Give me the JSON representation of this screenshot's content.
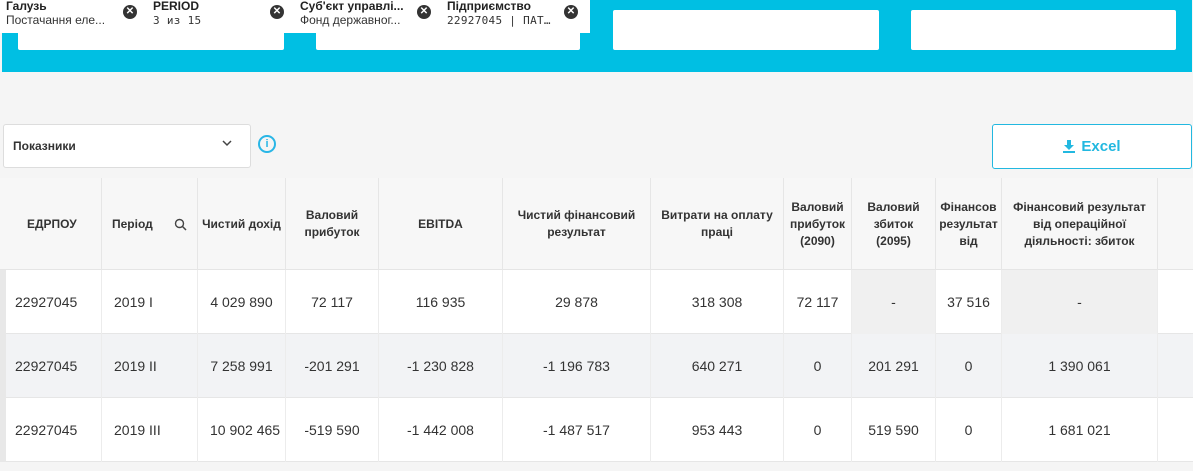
{
  "filters": [
    {
      "title": "Галузь",
      "value": "Постачання еле..."
    },
    {
      "title": "PERIOD",
      "value": "3 из 15"
    },
    {
      "title": "Суб'єкт управлі...",
      "value": "Фонд державног..."
    },
    {
      "title": "Підприємство",
      "value": "22927045 | ПАТ ..."
    }
  ],
  "controls": {
    "select_label": "Показники",
    "info_glyph": "i",
    "excel_label": "Excel"
  },
  "table": {
    "columns": [
      "ЕДРПОУ",
      "Період",
      "Чистий дохід",
      "Валовий прибуток",
      "EBITDA",
      "Чистий фінансовий результат",
      "Витрати на оплату праці",
      "Валовий прибуток (2090)",
      "Валовий збиток (2095)",
      "Фінансов результат від",
      "Фінансовий результат від операційної діяльності: збиток"
    ],
    "rows": [
      [
        "22927045",
        "2019 I",
        "4 029 890",
        "72 117",
        "116 935",
        "29 878",
        "318 308",
        "72 117",
        "-",
        "37 516",
        "-"
      ],
      [
        "22927045",
        "2019 II",
        "7 258 991",
        "-201 291",
        "-1 230 828",
        "-1 196 783",
        "640 271",
        "0",
        "201 291",
        "0",
        "1 390 061"
      ],
      [
        "22927045",
        "2019 III",
        "10 902 465",
        "-519 590",
        "-1 442 008",
        "-1 487 517",
        "953 443",
        "0",
        "519 590",
        "0",
        "1 681 021"
      ]
    ]
  },
  "colors": {
    "band": "#00bfe3",
    "accent": "#22b8e0",
    "chip_close": "#333333"
  },
  "icons": [
    "close-icon",
    "chevron-down-icon",
    "info-icon",
    "download-icon",
    "search-icon"
  ]
}
